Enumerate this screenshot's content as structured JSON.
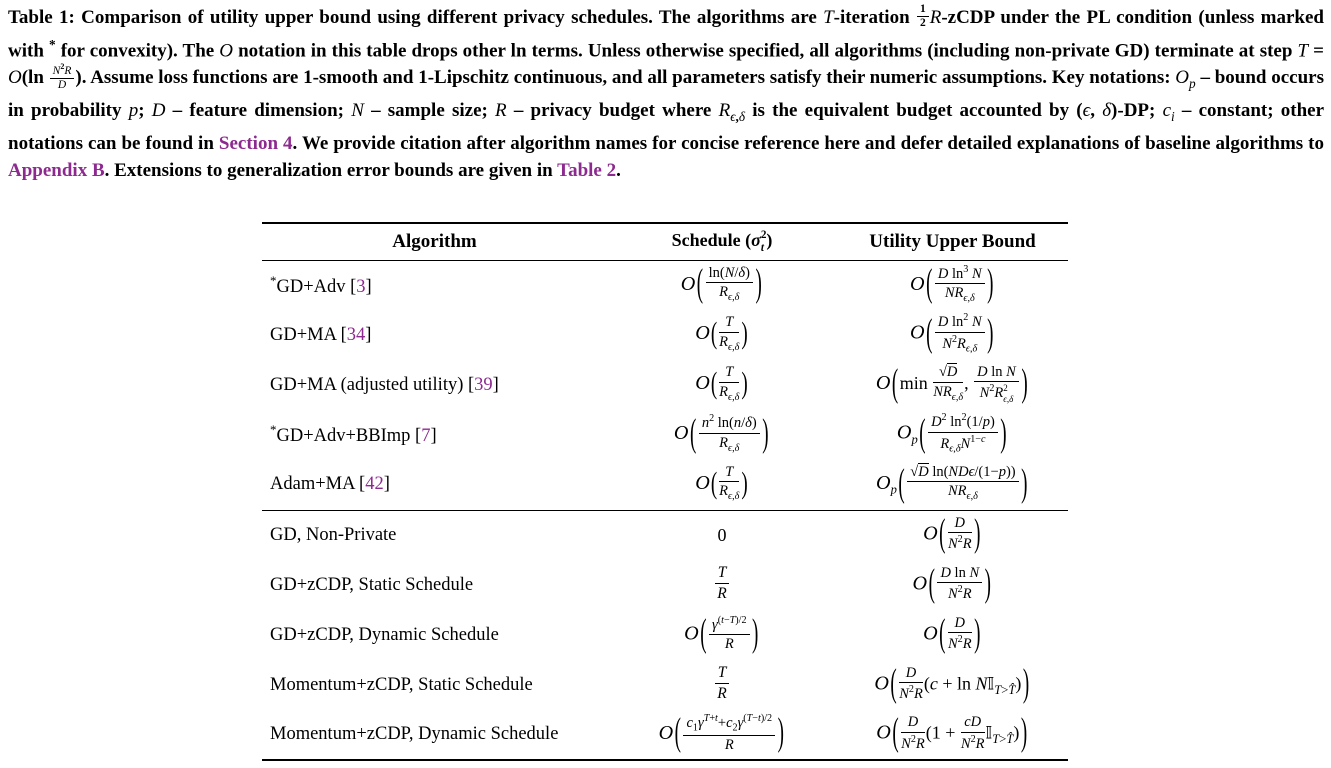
{
  "colors": {
    "link_purple": "#8D2A8F",
    "text": "#000000",
    "background": "#FFFFFF"
  },
  "caption": {
    "html": "Table 1: Comparison of utility upper bound using different privacy schedules. The algorithms are <i>T</i>-iteration <span class='frac sm'><span class='num'>1</span><span class='den'>2</span></span><i>R</i>-zCDP under the PL condition (unless marked with <sup>*</sup> for convexity). The <i>O</i> notation in this table drops other ln terms. Unless otherwise specified, all algorithms (including non-private GD) terminate at step <i>T</i> = <i>O</i>(ln <span class='frac sm'><span class='num'><i>N</i><sup>2</sup><i>R</i></span><span class='den'><i>D</i></span></span>). Assume loss functions are 1-smooth and 1-Lipschitz continuous, and all parameters satisfy their numeric assumptions. Key notations: <i>O<sub>p</sub></i> – bound occurs in probability <i>p</i>; <i>D</i> – feature dimension; <i>N</i> – sample size; <i>R</i> – privacy budget where <i>R</i><sub><i>ϵ</i>,<i>δ</i></sub> is the equivalent budget accounted by (<i>ϵ</i>, <i>δ</i>)-DP; <i>c<sub>i</sub></i> – constant; other notations can be found in <span class='link'>Section 4</span>. We provide citation after algorithm names for concise reference here and defer detailed explanations of baseline algorithms to <span class='link'>Appendix B</span>. Extensions to generalization error bounds are given in <span class='link'>Table 2</span>."
  },
  "table": {
    "headers": {
      "algorithm_html": "Algorithm",
      "schedule_html": "Schedule (<i>σ</i><span class='ss'><span>2</span><span><i>t</i></span></span>)",
      "bound_html": "Utility Upper Bound"
    },
    "baseline_rows": [
      {
        "algorithm_html": "<sup>*</sup>GD+Adv [<span class='cite'>3</span>]",
        "schedule_html": "<i class='O'>O</i><span class='bp'>(</span><span class='frac'><span class='num'>ln(<i>N</i>/<i>δ</i>)</span><span class='den'><i>R</i><sub><i>ϵ</i>,<i>δ</i></sub></span></span><span class='bp'>)</span>",
        "bound_html": "<i class='O'>O</i><span class='bp'>(</span><span class='frac'><span class='num'><i>D</i> ln<sup>3</sup> <i>N</i></span><span class='den'><i>NR</i><sub><i>ϵ</i>,<i>δ</i></sub></span></span><span class='bp'>)</span>"
      },
      {
        "algorithm_html": "GD+MA [<span class='cite'>34</span>]",
        "schedule_html": "<i class='O'>O</i><span class='mp'>(</span><span class='frac'><span class='num'><i>T</i></span><span class='den'><i>R</i><sub><i>ϵ</i>,<i>δ</i></sub></span></span><span class='mp'>)</span>",
        "bound_html": "<i class='O'>O</i><span class='bp'>(</span><span class='frac'><span class='num'><i>D</i> ln<sup>2</sup> <i>N</i></span><span class='den'><i>N</i><sup>2</sup><i>R</i><sub><i>ϵ</i>,<i>δ</i></sub></span></span><span class='bp'>)</span>"
      },
      {
        "algorithm_html": "GD+MA (adjusted utility) [<span class='cite'>39</span>]",
        "schedule_html": "<i class='O'>O</i><span class='mp'>(</span><span class='frac'><span class='num'><i>T</i></span><span class='den'><i>R</i><sub><i>ϵ</i>,<i>δ</i></sub></span></span><span class='mp'>)</span>",
        "bound_html": "<i class='O'>O</i><span class='bp'>(</span>min <span class='frac'><span class='num'>√<span class='sq'><i>D</i></span></span><span class='den'><i>NR</i><sub><i>ϵ</i>,<i>δ</i></sub></span></span>, <span class='frac'><span class='num'><i>D</i> ln <i>N</i></span><span class='den'><i>N</i><sup>2</sup><i>R</i><span class='ss'><span>2</span><span><i>ϵ</i>,<i>δ</i></span></span></span></span><span class='bp'>)</span>"
      },
      {
        "algorithm_html": "<sup>*</sup>GD+Adv+BBImp [<span class='cite'>7</span>]",
        "schedule_html": "<i class='O'>O</i><span class='bp'>(</span><span class='frac'><span class='num'><i>n</i><sup>2</sup> ln(<i>n</i>/<i>δ</i>)</span><span class='den'><i>R</i><sub><i>ϵ</i>,<i>δ</i></sub></span></span><span class='bp'>)</span>",
        "bound_html": "<i class='O'>O</i><i><sub>p</sub></i><span class='bp'>(</span><span class='frac'><span class='num'><i>D</i><sup>2</sup> ln<sup>2</sup>(1/<i>p</i>)</span><span class='den'><i>R</i><sub><i>ϵ</i>,<i>δ</i></sub><i>N</i><sup>1−<i>c</i></sup></span></span><span class='bp'>)</span>"
      },
      {
        "algorithm_html": "Adam+MA [<span class='cite'>42</span>]",
        "schedule_html": "<i class='O'>O</i><span class='mp'>(</span><span class='frac'><span class='num'><i>T</i></span><span class='den'><i>R</i><sub><i>ϵ</i>,<i>δ</i></sub></span></span><span class='mp'>)</span>",
        "bound_html": "<i class='O'>O</i><i><sub>p</sub></i><span class='bp'>(</span><span class='frac'><span class='num'>√<span class='sq'><i>D</i></span> ln(<i>NDϵ</i>/(1−<i>p</i>))</span><span class='den'><i>NR</i><sub><i>ϵ</i>,<i>δ</i></sub></span></span><span class='bp'>)</span>"
      }
    ],
    "zcdp_rows": [
      {
        "algorithm_html": "GD, Non-Private",
        "schedule_html": "0",
        "bound_html": "<i class='O'>O</i><span class='bp'>(</span><span class='frac'><span class='num'><i>D</i></span><span class='den'><i>N</i><sup>2</sup><i>R</i></span></span><span class='bp'>)</span>"
      },
      {
        "algorithm_html": "GD+zCDP, Static Schedule",
        "schedule_html": "<span class='frac lone'><span class='num'><i>T</i></span><span class='den'><i>R</i></span></span>",
        "bound_html": "<i class='O'>O</i><span class='bp'>(</span><span class='frac'><span class='num'><i>D</i> ln <i>N</i></span><span class='den'><i>N</i><sup>2</sup><i>R</i></span></span><span class='bp'>)</span>"
      },
      {
        "algorithm_html": "GD+zCDP, Dynamic Schedule",
        "schedule_html": "<i class='O'>O</i><span class='bp'>(</span><span class='frac'><span class='num'><i>γ</i><sup>(<i>t</i>−<i>T</i>)/2</sup></span><span class='den'><i>R</i></span></span><span class='bp'>)</span>",
        "bound_html": "<i class='O'>O</i><span class='bp'>(</span><span class='frac'><span class='num'><i>D</i></span><span class='den'><i>N</i><sup>2</sup><i>R</i></span></span><span class='bp'>)</span>"
      },
      {
        "algorithm_html": "Momentum+zCDP, Static Schedule",
        "schedule_html": "<span class='frac lone'><span class='num'><i>T</i></span><span class='den'><i>R</i></span></span>",
        "bound_html": "<i class='O'>O</i><span class='bp'>(</span><span class='frac'><span class='num'><i>D</i></span><span class='den'><i>N</i><sup>2</sup><i>R</i></span></span>(<i>c</i> + ln <i>N</i><span class='bb'>𝕀</span><sub><i>T</i>&gt;<i>T̂</i></sub>)<span class='bp'>)</span>"
      },
      {
        "algorithm_html": "Momentum+zCDP, Dynamic Schedule",
        "schedule_html": "<i class='O'>O</i><span class='bp'>(</span><span class='frac'><span class='num'><i>c</i><sub>1</sub><i>γ</i><sup><i>T</i>+<i>t</i></sup>+<i>c</i><sub>2</sub><i>γ</i><sup>(<i>T</i>−<i>t</i>)/2</sup></span><span class='den'><i>R</i></span></span><span class='bp'>)</span>",
        "bound_html": "<i class='O'>O</i><span class='bp'>(</span><span class='frac'><span class='num'><i>D</i></span><span class='den'><i>N</i><sup>2</sup><i>R</i></span></span>(1 + <span class='frac'><span class='num'><i>cD</i></span><span class='den'><i>N</i><sup>2</sup><i>R</i></span></span><span class='bb'>𝕀</span><sub><i>T</i>&gt;<i>T̂</i></sub>)<span class='bp'>)</span>"
      }
    ]
  }
}
